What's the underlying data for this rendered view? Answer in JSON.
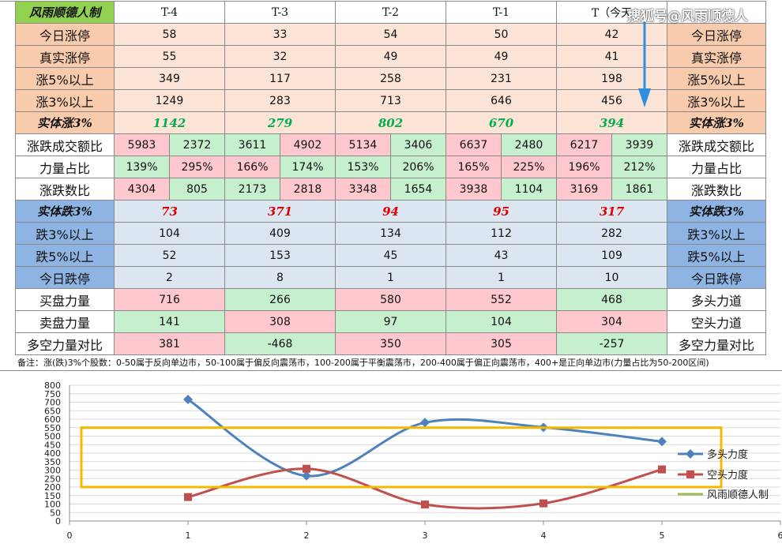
{
  "table": {
    "corner": "风雨顺德人制",
    "days": [
      "T-4",
      "T-3",
      "T-2",
      "T-1",
      "T（今天"
    ],
    "rows": [
      {
        "label": "今日涨停",
        "right": "今日涨停",
        "values": [
          "58",
          "33",
          "54",
          "50",
          "42"
        ]
      },
      {
        "label": "真实涨停",
        "right": "真实涨停",
        "values": [
          "55",
          "32",
          "49",
          "49",
          "41"
        ]
      },
      {
        "label": "涨5%以上",
        "right": "涨5%以上",
        "values": [
          "349",
          "117",
          "258",
          "231",
          "198"
        ]
      },
      {
        "label": "涨3%以上",
        "right": "涨3%以上",
        "values": [
          "1249",
          "283",
          "713",
          "646",
          "456"
        ]
      },
      {
        "label": "实体涨3%",
        "right": "实体涨3%",
        "values": [
          "1142",
          "279",
          "802",
          "670",
          "394"
        ]
      },
      {
        "label": "涨跌成交额比",
        "right": "涨跌成交额比",
        "pairs": [
          [
            "5983",
            "2372"
          ],
          [
            "3611",
            "4902"
          ],
          [
            "5134",
            "3406"
          ],
          [
            "6637",
            "2480"
          ],
          [
            "6217",
            "3939"
          ]
        ]
      },
      {
        "label": "力量占比",
        "right": "力量占比",
        "pairs": [
          [
            "139%",
            "295%"
          ],
          [
            "166%",
            "174%"
          ],
          [
            "153%",
            "206%"
          ],
          [
            "165%",
            "225%"
          ],
          [
            "196%",
            "212%"
          ]
        ]
      },
      {
        "label": "涨跌数比",
        "right": "涨跌数比",
        "pairs": [
          [
            "4304",
            "805"
          ],
          [
            "2173",
            "2818"
          ],
          [
            "3348",
            "1654"
          ],
          [
            "3938",
            "1104"
          ],
          [
            "3169",
            "1861"
          ]
        ]
      },
      {
        "label": "实体跌3%",
        "right": "实体跌3%",
        "values": [
          "73",
          "371",
          "94",
          "95",
          "317"
        ]
      },
      {
        "label": "跌3%以上",
        "right": "跌3%以上",
        "values": [
          "104",
          "409",
          "134",
          "112",
          "282"
        ]
      },
      {
        "label": "跌5%以上",
        "right": "跌5%以上",
        "values": [
          "52",
          "153",
          "45",
          "43",
          "109"
        ]
      },
      {
        "label": "今日跌停",
        "right": "今日跌停",
        "values": [
          "2",
          "8",
          "1",
          "1",
          "10"
        ]
      },
      {
        "label": "买盘力量",
        "right": "多头力道",
        "values": [
          "716",
          "266",
          "580",
          "552",
          "468"
        ]
      },
      {
        "label": "卖盘力量",
        "right": "空头力道",
        "values": [
          "141",
          "308",
          "97",
          "104",
          "304"
        ]
      },
      {
        "label": "多空力量对比",
        "right": "多空力量对比",
        "values": [
          "381",
          "-468",
          "350",
          "305",
          "-257"
        ]
      }
    ],
    "note": "备注：涨(跌)3%个股数：0-50属于反向单边市，50-100属于偏反向震荡市，100-200属于平衡震荡市，200-400属于偏正向震荡市，400+是正向单边市(力量占比为50-200区间)"
  },
  "watermark": "搜狐号@风雨顺德人",
  "colors": {
    "corner_bg": "#92d050",
    "peach": "#fce4d6",
    "peach_label": "#f8cbad",
    "blue_label": "#8eb4e3",
    "blue_cell": "#dce6f1",
    "green_cell": "#c6efce",
    "pink_cell": "#ffc7ce",
    "green_text": "#00b050",
    "red_text": "#e00000",
    "series_long": "#4f81bd",
    "series_short": "#c0504d",
    "series_third": "#9bbb59",
    "highlight_box": "#f5b800",
    "arrow": "#2e8ee0"
  },
  "chart_data": {
    "type": "scatter",
    "x_ticks": [
      "0",
      "1",
      "2",
      "3",
      "4",
      "5",
      "6"
    ],
    "y_ticks": [
      "0",
      "50",
      "100",
      "150",
      "200",
      "250",
      "300",
      "350",
      "400",
      "450",
      "500",
      "550",
      "600",
      "650",
      "700",
      "750",
      "800"
    ],
    "xlim": [
      0,
      6
    ],
    "ylim": [
      0,
      800
    ],
    "grid": true,
    "legend_position": "right",
    "series": [
      {
        "name": "多头力度",
        "x": [
          1,
          2,
          3,
          4,
          5
        ],
        "y": [
          716,
          266,
          580,
          552,
          468
        ]
      },
      {
        "name": "空头力度",
        "x": [
          1,
          2,
          3,
          4,
          5
        ],
        "y": [
          141,
          308,
          97,
          104,
          304
        ]
      },
      {
        "name": "风雨顺德人制",
        "x": [],
        "y": []
      }
    ],
    "highlight_range": {
      "x": [
        0.1,
        5.5
      ],
      "y": [
        200,
        550
      ]
    }
  }
}
